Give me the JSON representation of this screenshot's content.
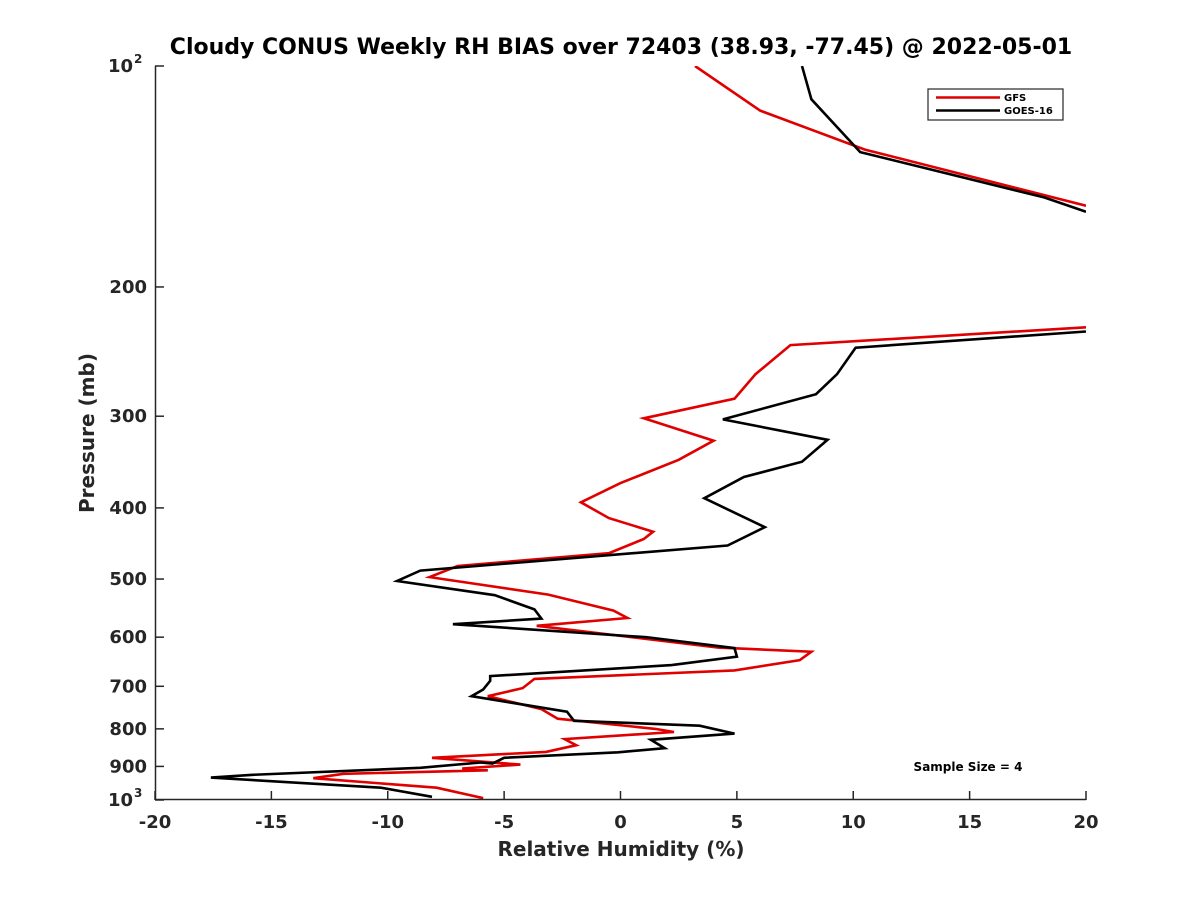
{
  "chart_data": {
    "type": "line",
    "title": "Cloudy CONUS Weekly RH BIAS over 72403 (38.93, -77.45) @ 2022-05-01",
    "xlabel": "Relative Humidity (%)",
    "ylabel": "Pressure (mb)",
    "xlim": [
      -20,
      20
    ],
    "ylim": [
      100,
      1000
    ],
    "y_scale": "log",
    "y_reversed": true,
    "grid": false,
    "legend_position": "top-right",
    "x_ticks": [
      "-20",
      "-15",
      "-10",
      "-5",
      "0",
      "5",
      "10",
      "15",
      "20"
    ],
    "y_ticks": [
      {
        "value": 100,
        "base": "10",
        "exp": "2"
      },
      {
        "value": 200,
        "label": "200"
      },
      {
        "value": 300,
        "label": "300"
      },
      {
        "value": 400,
        "label": "400"
      },
      {
        "value": 500,
        "label": "500"
      },
      {
        "value": 600,
        "label": "600"
      },
      {
        "value": 700,
        "label": "700"
      },
      {
        "value": 800,
        "label": "800"
      },
      {
        "value": 900,
        "label": "900"
      },
      {
        "value": 1000,
        "base": "10",
        "exp": "3"
      }
    ],
    "series": [
      {
        "name": "GFS",
        "color": "#e00000",
        "segments": [
          [
            [
              3.2,
              100
            ],
            [
              6.0,
              115
            ],
            [
              10.5,
              130
            ],
            [
              20.0,
              155
            ]
          ],
          [
            [
              20.0,
              227
            ],
            [
              7.3,
              240
            ],
            [
              5.8,
              263
            ],
            [
              4.9,
              284
            ],
            [
              1.0,
              302
            ],
            [
              4.0,
              324
            ],
            [
              2.5,
              344
            ],
            [
              0.0,
              370
            ],
            [
              -1.7,
              393
            ],
            [
              -0.5,
              413
            ],
            [
              1.4,
              431
            ],
            [
              1.0,
              441
            ],
            [
              -0.5,
              461
            ],
            [
              -7.0,
              480
            ],
            [
              -8.2,
              497
            ],
            [
              -3.1,
              525
            ],
            [
              -0.3,
              552
            ],
            [
              0.3,
              565
            ],
            [
              -3.6,
              579
            ],
            [
              4.2,
              620
            ],
            [
              8.2,
              628
            ],
            [
              7.7,
              645
            ],
            [
              4.9,
              666
            ],
            [
              -3.7,
              684
            ],
            [
              -4.2,
              704
            ],
            [
              -5.7,
              722
            ],
            [
              -3.4,
              752
            ],
            [
              -2.7,
              775
            ],
            [
              1.5,
              800
            ],
            [
              2.3,
              808
            ],
            [
              -2.4,
              826
            ],
            [
              -1.9,
              842
            ],
            [
              -3.2,
              860
            ],
            [
              -8.1,
              876
            ],
            [
              -4.3,
              895
            ],
            [
              -6.8,
              906
            ],
            [
              -5.7,
              911
            ],
            [
              -11.9,
              921
            ],
            [
              -13.2,
              934
            ],
            [
              -7.9,
              962
            ],
            [
              -5.9,
              994
            ]
          ]
        ]
      },
      {
        "name": "GOES-16",
        "color": "#000000",
        "segments": [
          [
            [
              7.8,
              100
            ],
            [
              8.2,
              111
            ],
            [
              10.3,
              131
            ],
            [
              18.2,
              151
            ],
            [
              20.0,
              158
            ]
          ],
          [
            [
              20.0,
              230
            ],
            [
              10.1,
              242
            ],
            [
              9.3,
              263
            ],
            [
              8.4,
              280
            ],
            [
              4.4,
              303
            ],
            [
              8.9,
              323
            ],
            [
              7.8,
              346
            ],
            [
              5.3,
              363
            ],
            [
              3.6,
              388
            ],
            [
              6.2,
              425
            ],
            [
              4.6,
              450
            ],
            [
              -8.6,
              487
            ],
            [
              -9.6,
              503
            ],
            [
              -5.4,
              526
            ],
            [
              -3.7,
              550
            ],
            [
              -3.4,
              566
            ],
            [
              -7.2,
              576
            ],
            [
              1.1,
              600
            ],
            [
              4.9,
              621
            ],
            [
              5.0,
              638
            ],
            [
              2.2,
              655
            ],
            [
              -5.6,
              678
            ],
            [
              -5.6,
              688
            ],
            [
              -5.9,
              707
            ],
            [
              -6.4,
              722
            ],
            [
              -2.3,
              758
            ],
            [
              -2.0,
              780
            ],
            [
              3.4,
              792
            ],
            [
              4.9,
              812
            ],
            [
              1.3,
              828
            ],
            [
              1.9,
              850
            ],
            [
              -0.1,
              861
            ],
            [
              -5.0,
              876
            ],
            [
              -5.5,
              892
            ],
            [
              -6.0,
              889
            ],
            [
              -8.6,
              904
            ],
            [
              -15.8,
              924
            ],
            [
              -17.6,
              932
            ],
            [
              -10.3,
              962
            ],
            [
              -8.1,
              990
            ]
          ]
        ]
      }
    ],
    "annotation": "Sample Size = 4"
  }
}
